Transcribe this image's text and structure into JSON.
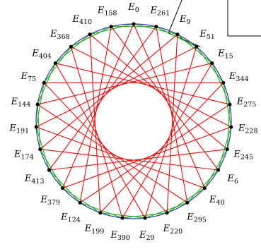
{
  "diagram": {
    "colors": {
      "circle": "#2b3aa6",
      "green_chords": "#1fa51f",
      "red_chords": "#e01010",
      "vertex": "#000000",
      "callout": "#000000"
    },
    "prefix": "E",
    "vertices": [
      "0",
      "261",
      "9",
      "51",
      "15",
      "344",
      "275",
      "228",
      "245",
      "6",
      "40",
      "295",
      "220",
      "29",
      "390",
      "199",
      "124",
      "379",
      "413",
      "174",
      "191",
      "144",
      "75",
      "404",
      "368",
      "410",
      "158"
    ],
    "green_step": 2,
    "red_step": 10
  }
}
